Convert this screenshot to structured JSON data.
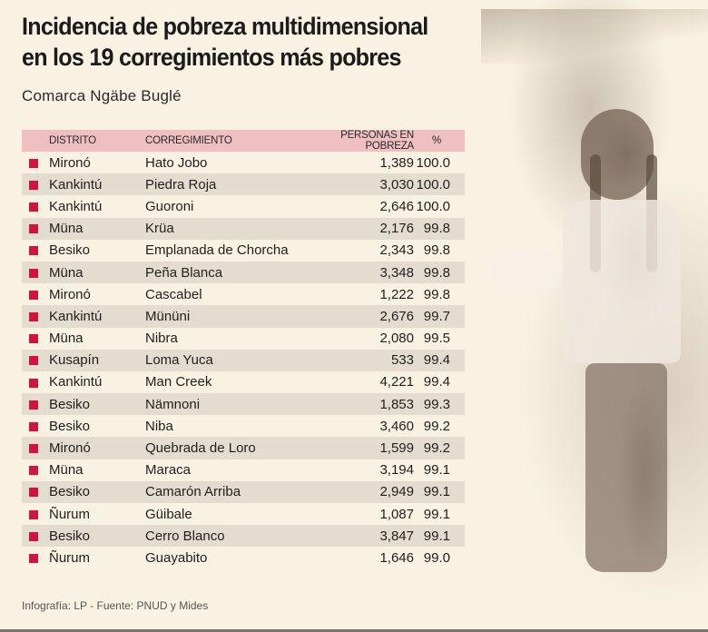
{
  "header": {
    "title_line1": "Incidencia de pobreza multidimensional",
    "title_line2": "en los 19 corregimientos más pobres",
    "subtitle": "Comarca Ngäbe Buglé"
  },
  "colors": {
    "background": "#f9f1e2",
    "header_row": "#efbfc2",
    "stripe": "#e4ddcf",
    "bullet": "#d0133f"
  },
  "table": {
    "columns": [
      "DISTRITO",
      "CORREGIMIENTO",
      "PERSONAS EN POBREZA",
      "%"
    ],
    "rows": [
      {
        "distrito": "Mironó",
        "corregimiento": "Hato Jobo",
        "personas": "1,389",
        "pct": "100.0"
      },
      {
        "distrito": "Kankintú",
        "corregimiento": "Piedra Roja",
        "personas": "3,030",
        "pct": "100.0"
      },
      {
        "distrito": "Kankintú",
        "corregimiento": "Guoroni",
        "personas": "2,646",
        "pct": "100.0"
      },
      {
        "distrito": "Müna",
        "corregimiento": "Krüa",
        "personas": "2,176",
        "pct": "99.8"
      },
      {
        "distrito": "Besiko",
        "corregimiento": "Emplanada de Chorcha",
        "personas": "2,343",
        "pct": "99.8"
      },
      {
        "distrito": "Müna",
        "corregimiento": "Peña Blanca",
        "personas": "3,348",
        "pct": "99.8"
      },
      {
        "distrito": "Mironó",
        "corregimiento": "Cascabel",
        "personas": "1,222",
        "pct": "99.8"
      },
      {
        "distrito": "Kankintú",
        "corregimiento": "Mününi",
        "personas": "2,676",
        "pct": "99.7"
      },
      {
        "distrito": "Müna",
        "corregimiento": "Nibra",
        "personas": "2,080",
        "pct": "99.5"
      },
      {
        "distrito": "Kusapín",
        "corregimiento": "Loma Yuca",
        "personas": "533",
        "pct": "99.4"
      },
      {
        "distrito": "Kankintú",
        "corregimiento": "Man Creek",
        "personas": "4,221",
        "pct": "99.4"
      },
      {
        "distrito": "Besiko",
        "corregimiento": "Nämnoni",
        "personas": "1,853",
        "pct": "99.3"
      },
      {
        "distrito": "Besiko",
        "corregimiento": "Niba",
        "personas": "3,460",
        "pct": "99.2"
      },
      {
        "distrito": "Mironó",
        "corregimiento": "Quebrada de Loro",
        "personas": "1,599",
        "pct": "99.2"
      },
      {
        "distrito": "Müna",
        "corregimiento": "Maraca",
        "personas": "3,194",
        "pct": "99.1"
      },
      {
        "distrito": "Besiko",
        "corregimiento": "Camarón Arriba",
        "personas": "2,949",
        "pct": "99.1"
      },
      {
        "distrito": "Ñurum",
        "corregimiento": "Güibale",
        "personas": "1,087",
        "pct": "99.1"
      },
      {
        "distrito": "Besiko",
        "corregimiento": "Cerro Blanco",
        "personas": "3,847",
        "pct": "99.1"
      },
      {
        "distrito": "Ñurum",
        "corregimiento": "Guayabito",
        "personas": "1,646",
        "pct": "99.0"
      }
    ]
  },
  "footer": {
    "credit": "Infografía: LP - Fuente: PNUD y Mides"
  },
  "chart_data": {
    "type": "table",
    "title": "Incidencia de pobreza multidimensional en los 19 corregimientos más pobres",
    "subtitle": "Comarca Ngäbe Buglé",
    "columns": [
      "DISTRITO",
      "CORREGIMIENTO",
      "PERSONAS EN POBREZA",
      "%"
    ],
    "categories": [
      "Hato Jobo",
      "Piedra Roja",
      "Guoroni",
      "Krüa",
      "Emplanada de Chorcha",
      "Peña Blanca",
      "Cascabel",
      "Mününi",
      "Nibra",
      "Loma Yuca",
      "Man Creek",
      "Nämnoni",
      "Niba",
      "Quebrada de Loro",
      "Maraca",
      "Camarón Arriba",
      "Güibale",
      "Cerro Blanco",
      "Guayabito"
    ],
    "distritos": [
      "Mironó",
      "Kankintú",
      "Kankintú",
      "Müna",
      "Besiko",
      "Müna",
      "Mironó",
      "Kankintú",
      "Müna",
      "Kusapín",
      "Kankintú",
      "Besiko",
      "Besiko",
      "Mironó",
      "Müna",
      "Besiko",
      "Ñurum",
      "Besiko",
      "Ñurum"
    ],
    "series": [
      {
        "name": "PERSONAS EN POBREZA",
        "values": [
          1389,
          3030,
          2646,
          2176,
          2343,
          3348,
          1222,
          2676,
          2080,
          533,
          4221,
          1853,
          3460,
          1599,
          3194,
          2949,
          1087,
          3847,
          1646
        ]
      },
      {
        "name": "%",
        "values": [
          100.0,
          100.0,
          100.0,
          99.8,
          99.8,
          99.8,
          99.8,
          99.7,
          99.5,
          99.4,
          99.4,
          99.3,
          99.2,
          99.2,
          99.1,
          99.1,
          99.1,
          99.1,
          99.0
        ]
      }
    ],
    "source": "Infografía: LP - Fuente: PNUD y Mides"
  }
}
